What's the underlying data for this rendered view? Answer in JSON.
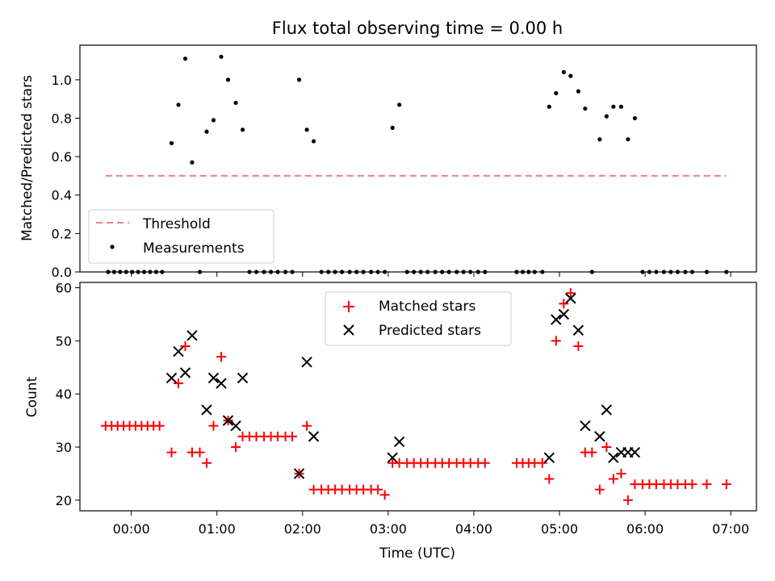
{
  "title": "Flux total observing time = 0.00 h",
  "colors": {
    "threshold": "#f08080",
    "measurement": "#000000",
    "matched": "#ff0000",
    "predicted": "#000000"
  },
  "chart_data": [
    {
      "type": "scatter",
      "ylabel": "Matched/Predicted stars",
      "xlim": [
        -0.6,
        7.3
      ],
      "ylim": [
        0,
        1.18
      ],
      "yticks": [
        0.0,
        0.2,
        0.4,
        0.6,
        0.8,
        1.0
      ],
      "ytick_labels": [
        "0.0",
        "0.2",
        "0.4",
        "0.6",
        "0.8",
        "1.0"
      ],
      "legend_position": "lower-left",
      "threshold": {
        "name": "Threshold",
        "y": 0.5,
        "x_start": -0.3,
        "x_end": 6.95
      },
      "series": [
        {
          "name": "Measurements",
          "x": [
            -0.27,
            -0.2,
            -0.13,
            -0.06,
            0.01,
            0.08,
            0.15,
            0.22,
            0.29,
            0.36,
            0.47,
            0.55,
            0.63,
            0.71,
            0.8,
            0.88,
            0.96,
            1.05,
            1.13,
            1.22,
            1.3,
            1.38,
            1.46,
            1.55,
            1.63,
            1.71,
            1.8,
            1.88,
            1.96,
            2.05,
            2.13,
            2.22,
            2.3,
            2.38,
            2.46,
            2.55,
            2.63,
            2.71,
            2.8,
            2.88,
            2.96,
            3.05,
            3.13,
            3.22,
            3.3,
            3.38,
            3.46,
            3.55,
            3.63,
            3.71,
            3.8,
            3.88,
            3.96,
            4.05,
            4.13,
            4.5,
            4.57,
            4.64,
            4.71,
            4.8,
            4.88,
            4.96,
            5.05,
            5.13,
            5.22,
            5.3,
            5.38,
            5.47,
            5.55,
            5.63,
            5.72,
            5.8,
            5.88,
            5.97,
            6.05,
            6.13,
            6.22,
            6.3,
            6.38,
            6.47,
            6.55,
            6.72,
            6.95
          ],
          "y": [
            0,
            0,
            0,
            0,
            0,
            0,
            0,
            0,
            0,
            0,
            0.67,
            0.87,
            1.11,
            0.57,
            0,
            0.73,
            0.79,
            1.12,
            1.0,
            0.88,
            0.74,
            0,
            0,
            0,
            0,
            0,
            0,
            0,
            1.0,
            0.74,
            0.68,
            0,
            0,
            0,
            0,
            0,
            0,
            0,
            0,
            0,
            0,
            0.75,
            0.87,
            0,
            0,
            0,
            0,
            0,
            0,
            0,
            0,
            0,
            0,
            0,
            0,
            0,
            0,
            0,
            0,
            0,
            0.86,
            0.93,
            1.04,
            1.02,
            0.94,
            0.85,
            0,
            0.69,
            0.81,
            0.86,
            0.86,
            0.69,
            0.8,
            0,
            0,
            0,
            0,
            0,
            0,
            0,
            0,
            0,
            0
          ]
        }
      ]
    },
    {
      "type": "scatter",
      "ylabel": "Count",
      "xlabel": "Time (UTC)",
      "xlim": [
        -0.6,
        7.3
      ],
      "ylim": [
        18,
        61
      ],
      "xticks": [
        0,
        1,
        2,
        3,
        4,
        5,
        6,
        7
      ],
      "xtick_labels": [
        "00:00",
        "01:00",
        "02:00",
        "03:00",
        "04:00",
        "05:00",
        "06:00",
        "07:00"
      ],
      "yticks": [
        20,
        30,
        40,
        50,
        60
      ],
      "ytick_labels": [
        "20",
        "30",
        "40",
        "50",
        "60"
      ],
      "legend_position": "upper-center",
      "series": [
        {
          "name": "Matched stars",
          "marker": "plus",
          "x": [
            -0.3,
            -0.23,
            -0.16,
            -0.09,
            -0.02,
            0.05,
            0.12,
            0.19,
            0.26,
            0.33,
            0.47,
            0.55,
            0.63,
            0.71,
            0.8,
            0.88,
            0.96,
            1.05,
            1.13,
            1.22,
            1.3,
            1.38,
            1.46,
            1.55,
            1.63,
            1.71,
            1.8,
            1.88,
            1.96,
            2.05,
            2.13,
            2.22,
            2.3,
            2.38,
            2.46,
            2.55,
            2.63,
            2.71,
            2.8,
            2.88,
            2.96,
            3.05,
            3.13,
            3.22,
            3.3,
            3.38,
            3.46,
            3.55,
            3.63,
            3.71,
            3.8,
            3.88,
            3.96,
            4.05,
            4.13,
            4.5,
            4.57,
            4.64,
            4.71,
            4.8,
            4.88,
            4.96,
            5.05,
            5.13,
            5.22,
            5.3,
            5.38,
            5.47,
            5.55,
            5.63,
            5.72,
            5.8,
            5.88,
            5.97,
            6.05,
            6.13,
            6.22,
            6.3,
            6.38,
            6.47,
            6.55,
            6.72,
            6.95
          ],
          "y": [
            34,
            34,
            34,
            34,
            34,
            34,
            34,
            34,
            34,
            34,
            29,
            42,
            49,
            29,
            29,
            27,
            34,
            47,
            35,
            30,
            32,
            32,
            32,
            32,
            32,
            32,
            32,
            32,
            25,
            34,
            22,
            22,
            22,
            22,
            22,
            22,
            22,
            22,
            22,
            22,
            21,
            27,
            27,
            27,
            27,
            27,
            27,
            27,
            27,
            27,
            27,
            27,
            27,
            27,
            27,
            27,
            27,
            27,
            27,
            27,
            24,
            50,
            57,
            59,
            49,
            29,
            29,
            22,
            30,
            24,
            25,
            20,
            23,
            23,
            23,
            23,
            23,
            23,
            23,
            23,
            23,
            23,
            23
          ]
        },
        {
          "name": "Predicted stars",
          "marker": "x",
          "x": [
            0.47,
            0.55,
            0.63,
            0.71,
            0.88,
            0.96,
            1.05,
            1.13,
            1.22,
            1.3,
            1.96,
            2.05,
            2.13,
            3.05,
            3.13,
            4.88,
            4.96,
            5.05,
            5.13,
            5.22,
            5.3,
            5.47,
            5.55,
            5.63,
            5.72,
            5.8,
            5.88
          ],
          "y": [
            43,
            48,
            44,
            51,
            37,
            43,
            42,
            35,
            34,
            43,
            25,
            46,
            32,
            28,
            31,
            28,
            54,
            55,
            58,
            52,
            34,
            32,
            37,
            28,
            29,
            29,
            29
          ]
        }
      ]
    }
  ]
}
